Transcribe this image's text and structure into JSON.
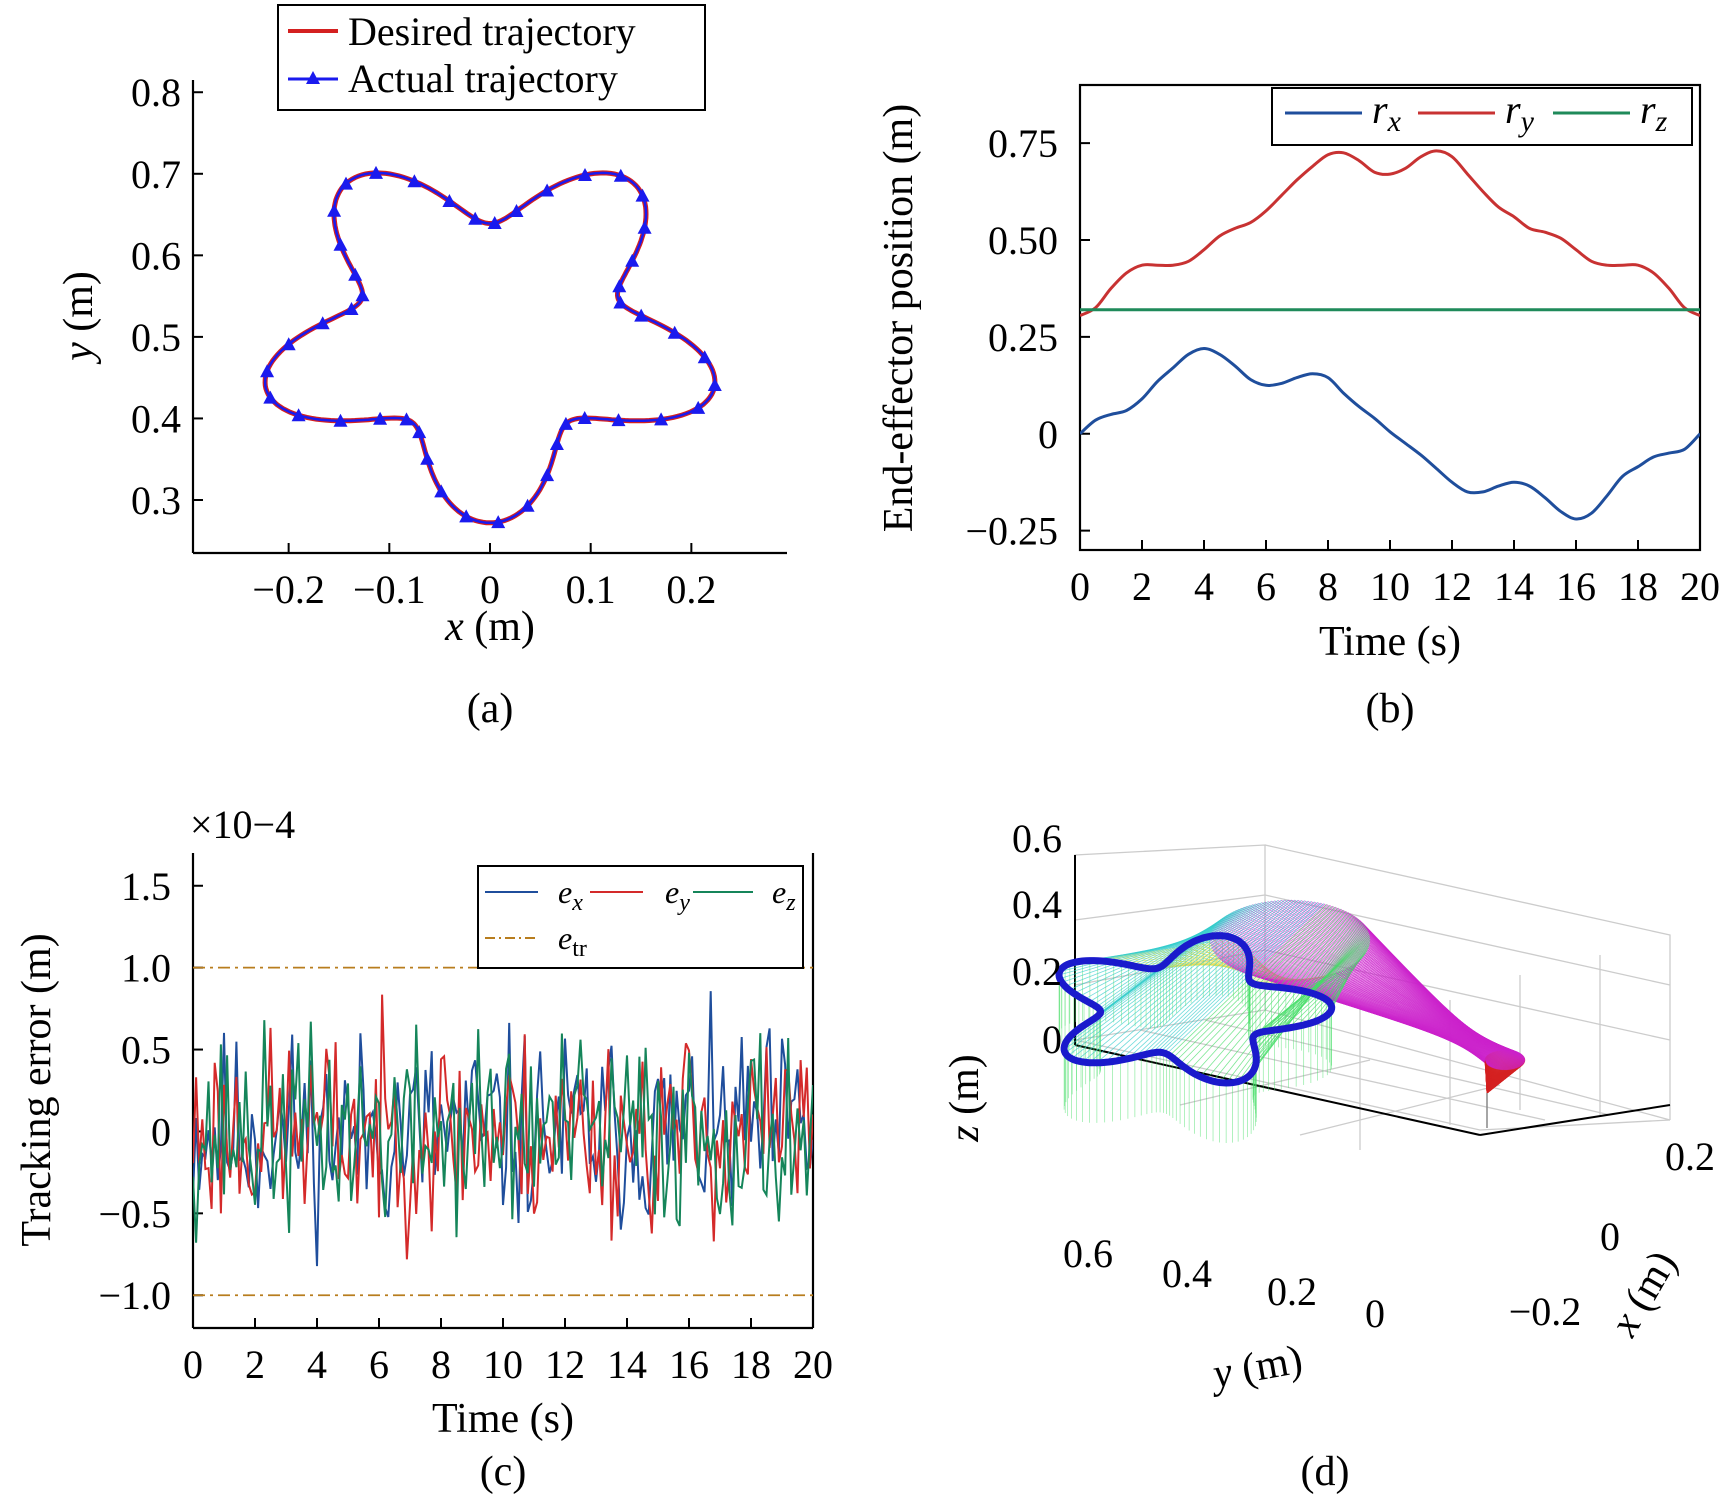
{
  "figure": {
    "panels": [
      {
        "id": "a",
        "caption": "(a)",
        "chart_data": {
          "type": "line",
          "xlabel": "x (m)",
          "ylabel": "y (m)",
          "xlim": [
            -0.295,
            0.295
          ],
          "ylim": [
            0.235,
            0.815
          ],
          "xticks": [
            -0.2,
            -0.1,
            0,
            0.1,
            0.2
          ],
          "xtick_labels": [
            "−0.2",
            "−0.1",
            "0",
            "0.1",
            "0.2"
          ],
          "yticks": [
            0.3,
            0.4,
            0.5,
            0.6,
            0.7,
            0.8
          ],
          "ytick_labels": [
            "0.3",
            "0.4",
            "0.5",
            "0.6",
            "0.7",
            "0.8"
          ],
          "legend_position": "top-right",
          "series": [
            {
              "name": "Desired trajectory",
              "color": "#d42020",
              "marker": "none",
              "shape": {
                "center": [
                  0,
                  0.505
                ],
                "petals": 5,
                "r_mean": 0.1835,
                "r_amp": 0.0495,
                "phase_deg": -90
              }
            },
            {
              "name": "Actual trajectory",
              "color": "#1a1aee",
              "marker": "triangle",
              "marker_count": 45,
              "shape": {
                "center": [
                  0,
                  0.505
                ],
                "petals": 5,
                "r_mean": 0.1835,
                "r_amp": 0.0495,
                "phase_deg": -90
              }
            }
          ]
        }
      },
      {
        "id": "b",
        "caption": "(b)",
        "chart_data": {
          "type": "line",
          "xlabel": "Time (s)",
          "ylabel": "End-effector position (m)",
          "xlim": [
            0,
            20
          ],
          "ylim": [
            -0.3,
            0.9
          ],
          "xticks": [
            0,
            2,
            4,
            6,
            8,
            10,
            12,
            14,
            16,
            18,
            20
          ],
          "xtick_labels": [
            "0",
            "2",
            "4",
            "6",
            "8",
            "10",
            "12",
            "14",
            "16",
            "18",
            "20"
          ],
          "yticks": [
            -0.25,
            0,
            0.25,
            0.5,
            0.75
          ],
          "ytick_labels": [
            "−0.25",
            "0",
            "0.25",
            "0.50",
            "0.75"
          ],
          "legend_position": "top-right",
          "series": [
            {
              "name": "r",
              "subscript": "x",
              "color": "#1f4e9c",
              "x": [
                0,
                0.5,
                1,
                1.5,
                2,
                2.5,
                3,
                3.5,
                4,
                4.5,
                5,
                5.5,
                6,
                6.5,
                7,
                7.5,
                8,
                8.5,
                9,
                9.5,
                10,
                10.5,
                11,
                11.5,
                12,
                12.5,
                13,
                13.5,
                14,
                14.5,
                15,
                15.5,
                16,
                16.5,
                17,
                17.5,
                18,
                18.5,
                19,
                19.5,
                20
              ],
              "y": [
                0,
                0.035,
                0.05,
                0.06,
                0.09,
                0.135,
                0.17,
                0.205,
                0.22,
                0.205,
                0.175,
                0.14,
                0.125,
                0.13,
                0.145,
                0.155,
                0.145,
                0.105,
                0.07,
                0.04,
                0.005,
                -0.025,
                -0.055,
                -0.09,
                -0.125,
                -0.15,
                -0.15,
                -0.135,
                -0.125,
                -0.135,
                -0.165,
                -0.2,
                -0.22,
                -0.205,
                -0.16,
                -0.11,
                -0.085,
                -0.06,
                -0.05,
                -0.04,
                0
              ]
            },
            {
              "name": "r",
              "subscript": "y",
              "color": "#c83232",
              "x": [
                0,
                0.5,
                1,
                1.5,
                2,
                2.5,
                3,
                3.5,
                4,
                4.5,
                5,
                5.5,
                6,
                6.5,
                7,
                7.5,
                8,
                8.5,
                9,
                9.5,
                10,
                10.5,
                11,
                11.5,
                12,
                12.5,
                13,
                13.5,
                14,
                14.5,
                15,
                15.5,
                16,
                16.5,
                17,
                17.5,
                18,
                18.5,
                19,
                19.5,
                20
              ],
              "y": [
                0.305,
                0.325,
                0.375,
                0.415,
                0.435,
                0.435,
                0.435,
                0.445,
                0.475,
                0.51,
                0.53,
                0.545,
                0.575,
                0.615,
                0.655,
                0.69,
                0.72,
                0.725,
                0.705,
                0.675,
                0.67,
                0.685,
                0.715,
                0.73,
                0.715,
                0.67,
                0.625,
                0.585,
                0.56,
                0.53,
                0.52,
                0.505,
                0.475,
                0.445,
                0.435,
                0.435,
                0.435,
                0.415,
                0.375,
                0.325,
                0.305
              ]
            },
            {
              "name": "r",
              "subscript": "z",
              "color": "#1f8a5a",
              "x": [
                0,
                20
              ],
              "y": [
                0.32,
                0.32
              ]
            }
          ]
        }
      },
      {
        "id": "c",
        "caption": "(c)",
        "chart_data": {
          "type": "line",
          "xlabel": "Time (s)",
          "ylabel": "Tracking error (m)",
          "exponent_label": "×10−4",
          "xlim": [
            0,
            20
          ],
          "ylim": [
            -1.2,
            1.7
          ],
          "xticks": [
            0,
            2,
            4,
            6,
            8,
            10,
            12,
            14,
            16,
            18,
            20
          ],
          "xtick_labels": [
            "0",
            "2",
            "4",
            "6",
            "8",
            "10",
            "12",
            "14",
            "16",
            "18",
            "20"
          ],
          "yticks": [
            -1.0,
            -0.5,
            0,
            0.5,
            1.0,
            1.5
          ],
          "ytick_labels": [
            "−1.0",
            "−0.5",
            "0",
            "0.5",
            "1.0",
            "1.5"
          ],
          "legend_position": "top-right",
          "noise": {
            "samples": 201,
            "amplitude": 0.9
          },
          "series": [
            {
              "name": "e",
              "subscript": "x",
              "color": "#1f4e9c",
              "seed": 11
            },
            {
              "name": "e",
              "subscript": "y",
              "color": "#d42a2a",
              "seed": 23
            },
            {
              "name": "e",
              "subscript": "z",
              "color": "#15855a",
              "seed": 37
            },
            {
              "name": "e",
              "subscript": "tr",
              "color": "#b87d1e",
              "dash": "dashdot",
              "values_pos": 1.0,
              "values_neg": -1.0
            }
          ]
        }
      },
      {
        "id": "d",
        "caption": "(d)",
        "chart_data": {
          "type": "3d-line",
          "xlabel": "x (m)",
          "ylabel": "y (m)",
          "zlabel": "z (m)",
          "xtick_labels": [
            "−0.2",
            "0",
            "0.2"
          ],
          "ytick_labels": [
            "0.6",
            "0.4",
            "0.2",
            "0"
          ],
          "ztick_labels": [
            "0",
            "0.2",
            "0.4",
            "0.6"
          ],
          "end_effector_color": "#1a1acc",
          "link_colors": [
            "#d42020",
            "#cc22cc",
            "#e6dd44",
            "#33cccc",
            "#44dd66"
          ]
        }
      }
    ]
  }
}
